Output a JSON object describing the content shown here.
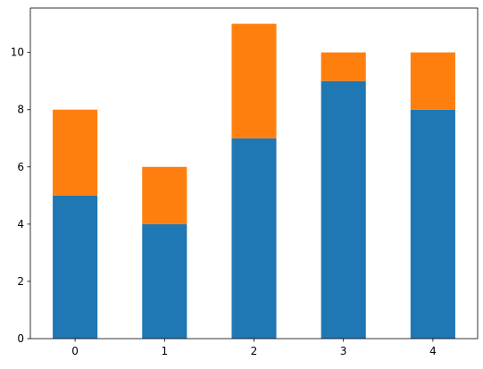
{
  "chart_data": {
    "type": "bar",
    "stacked": true,
    "title": "",
    "xlabel": "",
    "ylabel": "",
    "categories": [
      "0",
      "1",
      "2",
      "3",
      "4"
    ],
    "series": [
      {
        "values": [
          5,
          4,
          7,
          9,
          8
        ],
        "color": "#1f77b4"
      },
      {
        "values": [
          3,
          2,
          4,
          1,
          2
        ],
        "color": "#ff7f0e"
      }
    ],
    "ylim": [
      0,
      11.55
    ],
    "yticks": [
      0,
      2,
      4,
      6,
      8,
      10
    ],
    "grid": false,
    "legend": "none"
  }
}
